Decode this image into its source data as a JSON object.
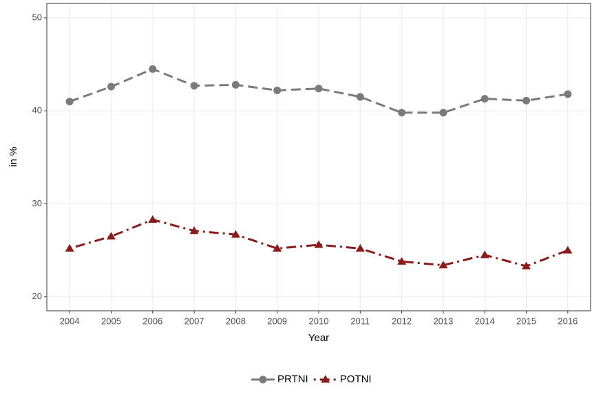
{
  "chart_data": {
    "type": "line",
    "x_label": "Year",
    "y_label": "in %",
    "x": [
      2004,
      2005,
      2006,
      2007,
      2008,
      2009,
      2010,
      2011,
      2012,
      2013,
      2014,
      2015,
      2016
    ],
    "series": [
      {
        "name": "PRTNI",
        "color": "#7a7a7a",
        "linestyle": "dashed",
        "marker": "circle",
        "values": [
          41.0,
          42.6,
          44.5,
          42.7,
          42.8,
          42.2,
          42.4,
          41.5,
          39.8,
          39.8,
          41.3,
          41.1,
          41.8
        ]
      },
      {
        "name": "POTNI",
        "color": "#8b1a1a",
        "linestyle": "dotdash",
        "marker": "triangle",
        "values": [
          25.2,
          26.5,
          28.3,
          27.1,
          26.7,
          25.2,
          25.6,
          25.2,
          23.8,
          23.4,
          24.5,
          23.3,
          25.0
        ]
      }
    ],
    "xlim": [
      2003.45,
      2016.55
    ],
    "xticks": [
      2004,
      2005,
      2006,
      2007,
      2008,
      2009,
      2010,
      2011,
      2012,
      2013,
      2014,
      2015,
      2016
    ],
    "ylim": [
      18.5,
      51.55
    ],
    "yticks": [
      20,
      30,
      40,
      50
    ],
    "grid": true,
    "legend": "bottom"
  }
}
